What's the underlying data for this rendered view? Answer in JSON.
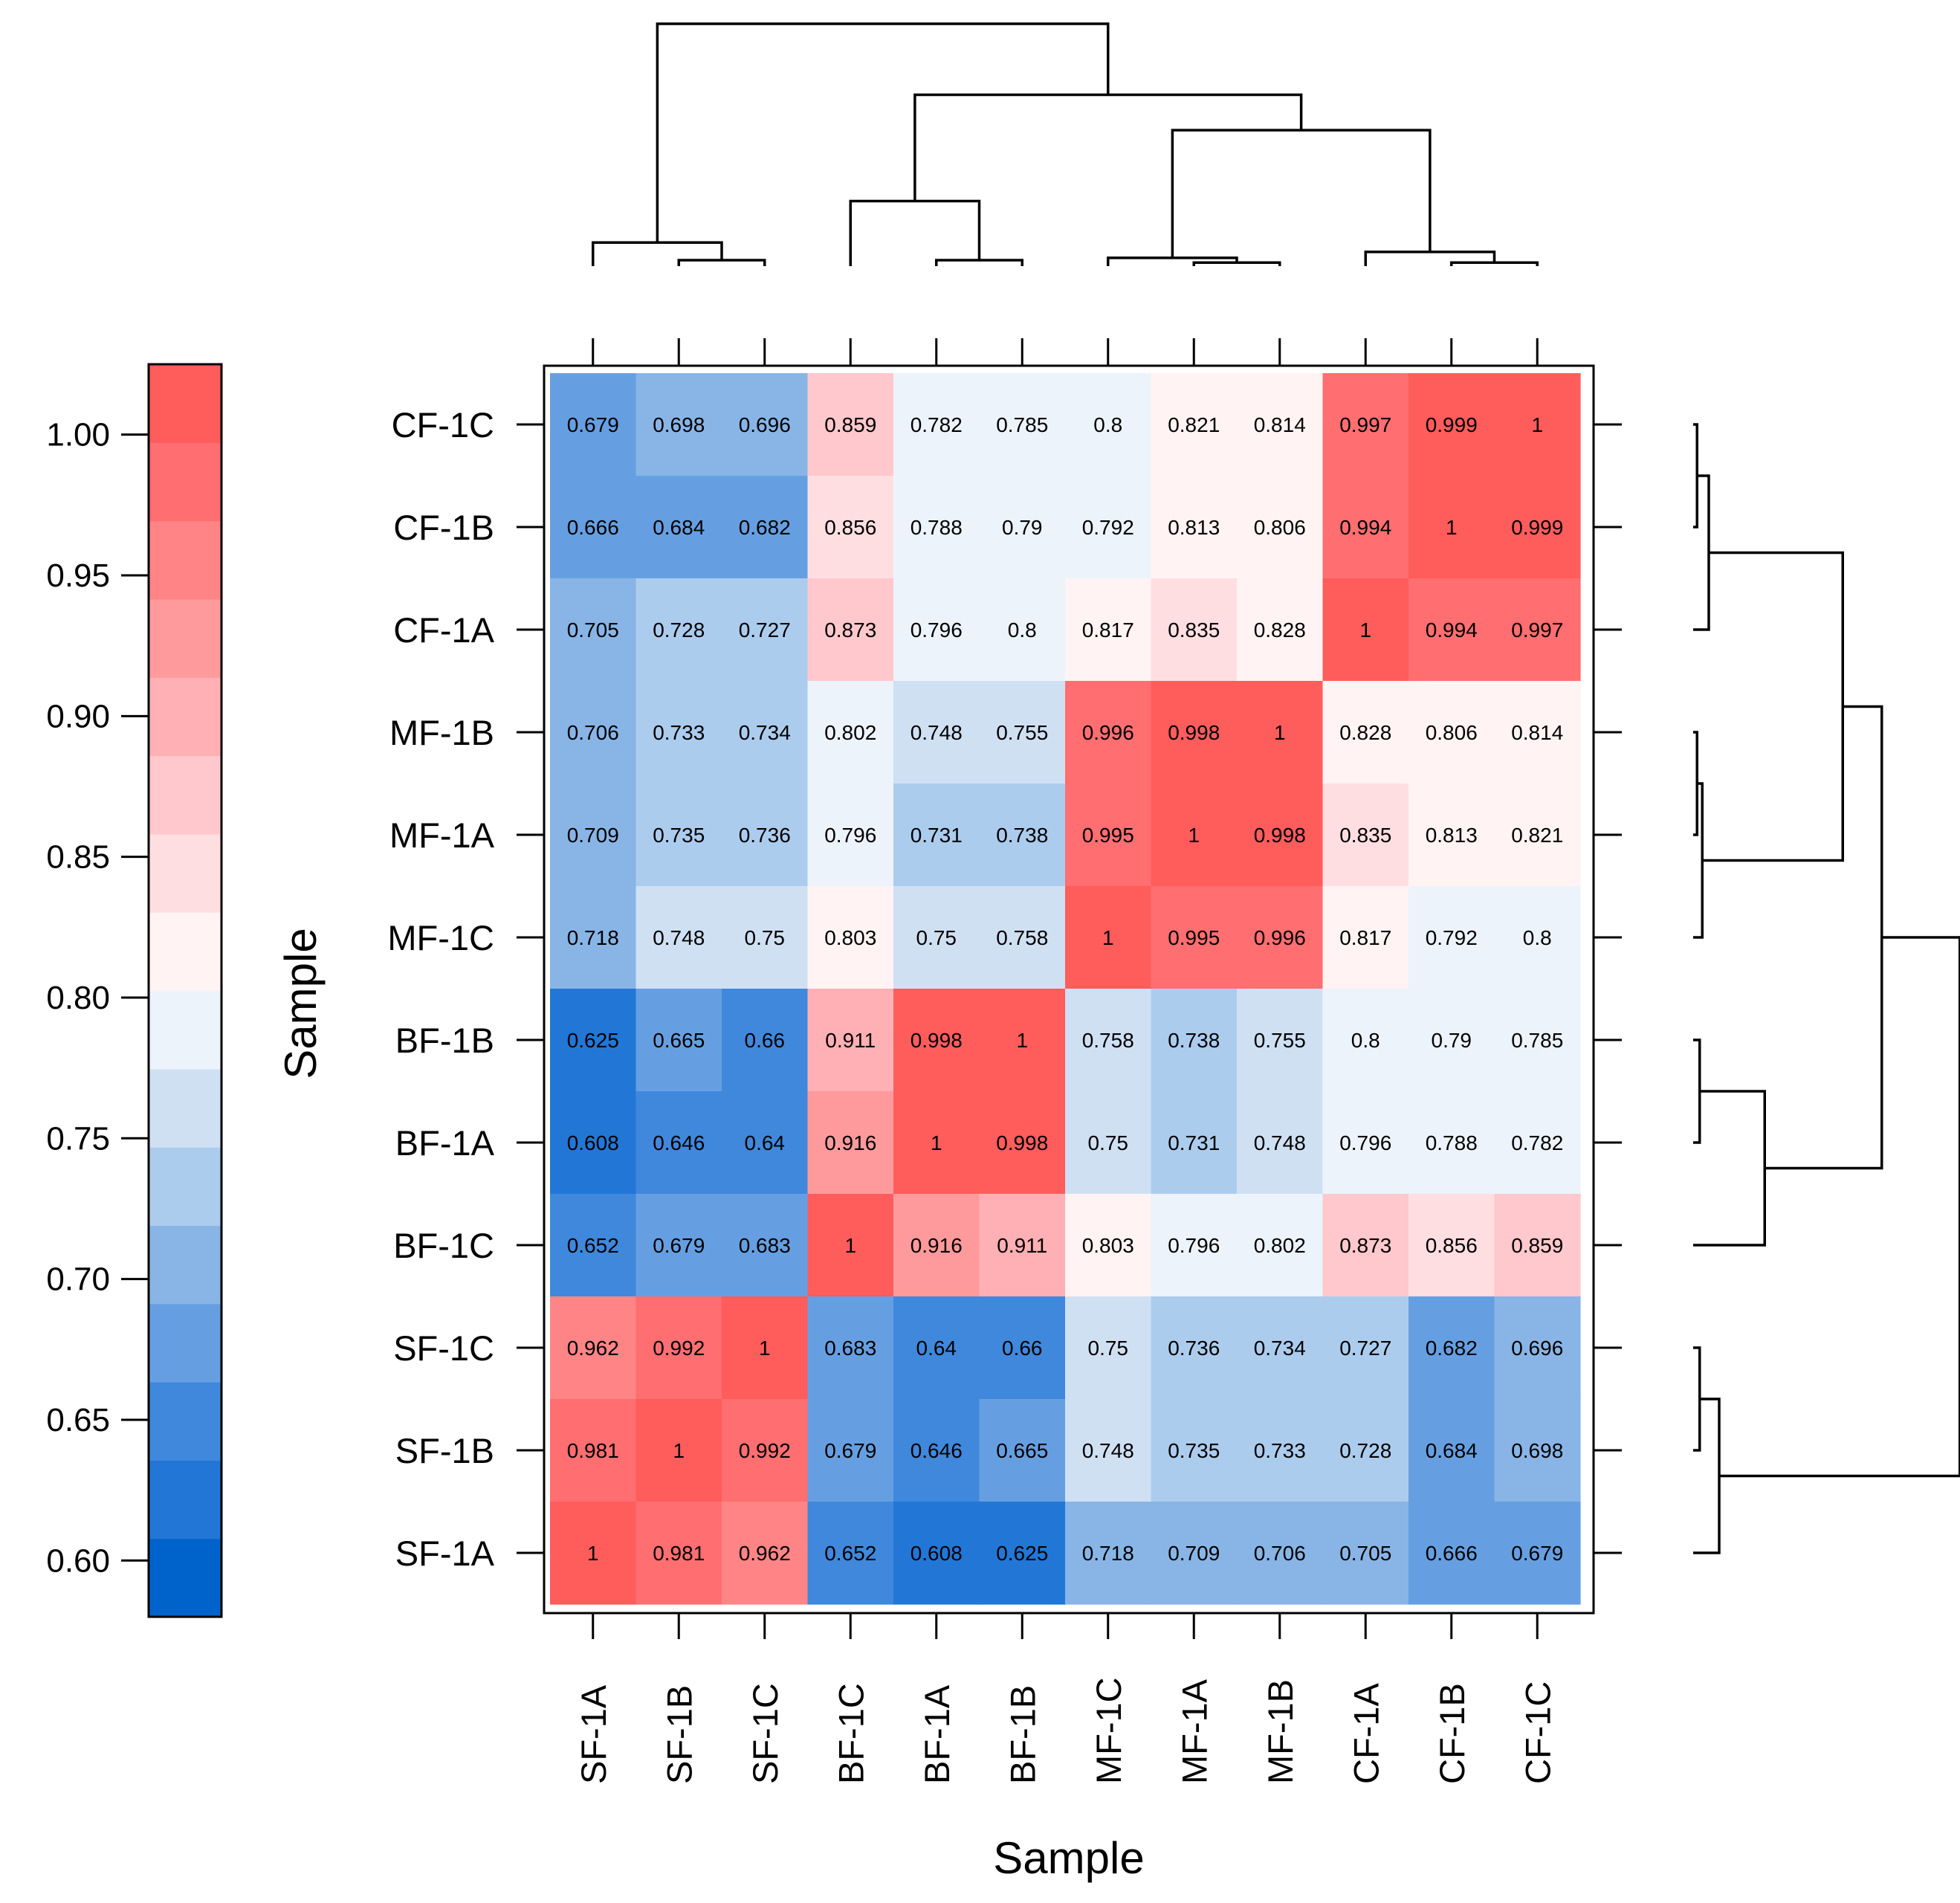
{
  "chart_data": {
    "type": "heatmap",
    "title": "",
    "xlabel": "Sample",
    "ylabel": "Sample",
    "x_categories": [
      "SF-1A",
      "SF-1B",
      "SF-1C",
      "BF-1C",
      "BF-1A",
      "BF-1B",
      "MF-1C",
      "MF-1A",
      "MF-1B",
      "CF-1A",
      "CF-1B",
      "CF-1C"
    ],
    "y_categories_top_to_bottom": [
      "CF-1C",
      "CF-1B",
      "CF-1A",
      "MF-1B",
      "MF-1A",
      "MF-1C",
      "BF-1B",
      "BF-1A",
      "BF-1C",
      "SF-1C",
      "SF-1B",
      "SF-1A"
    ],
    "cell_labels": [
      [
        "0.679",
        "0.698",
        "0.696",
        "0.859",
        "0.782",
        "0.785",
        "0.8",
        "0.821",
        "0.814",
        "0.997",
        "0.999",
        "1"
      ],
      [
        "0.666",
        "0.684",
        "0.682",
        "0.856",
        "0.788",
        "0.79",
        "0.792",
        "0.813",
        "0.806",
        "0.994",
        "1",
        "0.999"
      ],
      [
        "0.705",
        "0.728",
        "0.727",
        "0.873",
        "0.796",
        "0.8",
        "0.817",
        "0.835",
        "0.828",
        "1",
        "0.994",
        "0.997"
      ],
      [
        "0.706",
        "0.733",
        "0.734",
        "0.802",
        "0.748",
        "0.755",
        "0.996",
        "0.998",
        "1",
        "0.828",
        "0.806",
        "0.814"
      ],
      [
        "0.709",
        "0.735",
        "0.736",
        "0.796",
        "0.731",
        "0.738",
        "0.995",
        "1",
        "0.998",
        "0.835",
        "0.813",
        "0.821"
      ],
      [
        "0.718",
        "0.748",
        "0.75",
        "0.803",
        "0.75",
        "0.758",
        "1",
        "0.995",
        "0.996",
        "0.817",
        "0.792",
        "0.8"
      ],
      [
        "0.625",
        "0.665",
        "0.66",
        "0.911",
        "0.998",
        "1",
        "0.758",
        "0.738",
        "0.755",
        "0.8",
        "0.79",
        "0.785"
      ],
      [
        "0.608",
        "0.646",
        "0.64",
        "0.916",
        "1",
        "0.998",
        "0.75",
        "0.731",
        "0.748",
        "0.796",
        "0.788",
        "0.782"
      ],
      [
        "0.652",
        "0.679",
        "0.683",
        "1",
        "0.916",
        "0.911",
        "0.803",
        "0.796",
        "0.802",
        "0.873",
        "0.856",
        "0.859"
      ],
      [
        "0.962",
        "0.992",
        "1",
        "0.683",
        "0.64",
        "0.66",
        "0.75",
        "0.736",
        "0.734",
        "0.727",
        "0.682",
        "0.696"
      ],
      [
        "0.981",
        "1",
        "0.992",
        "0.679",
        "0.646",
        "0.665",
        "0.748",
        "0.735",
        "0.733",
        "0.728",
        "0.684",
        "0.698"
      ],
      [
        "1",
        "0.981",
        "0.962",
        "0.652",
        "0.608",
        "0.625",
        "0.718",
        "0.709",
        "0.706",
        "0.705",
        "0.666",
        "0.679"
      ]
    ],
    "colorbar": {
      "range": [
        0.58,
        1.025
      ],
      "tick_labels": [
        "1.00",
        "0.95",
        "0.90",
        "0.85",
        "0.80",
        "0.75",
        "0.70",
        "0.65",
        "0.60"
      ],
      "tick_values": [
        1.0,
        0.95,
        0.9,
        0.85,
        0.8,
        0.75,
        0.7,
        0.65,
        0.6
      ],
      "colors_bottom_to_top": [
        "#0063cc",
        "#2277d6",
        "#3f88dc",
        "#669fe1",
        "#88b5e6",
        "#acccee",
        "#d0e0f3",
        "#ecf3fa",
        "#fff3f3",
        "#ffdee2",
        "#ffc8cc",
        "#ffb0b4",
        "#ff9a9c",
        "#ff8486",
        "#ff6e70",
        "#ff5c5c"
      ],
      "low_color": "#0063cc",
      "mid_color": "#f2f6fb",
      "high_color": "#ff5c5c"
    },
    "dendrogram": "hierarchical clustering tree shown on top and right margins; groups SF | (BF | (MF | CF))",
    "grid": false,
    "legend": "left (colorbar)"
  }
}
